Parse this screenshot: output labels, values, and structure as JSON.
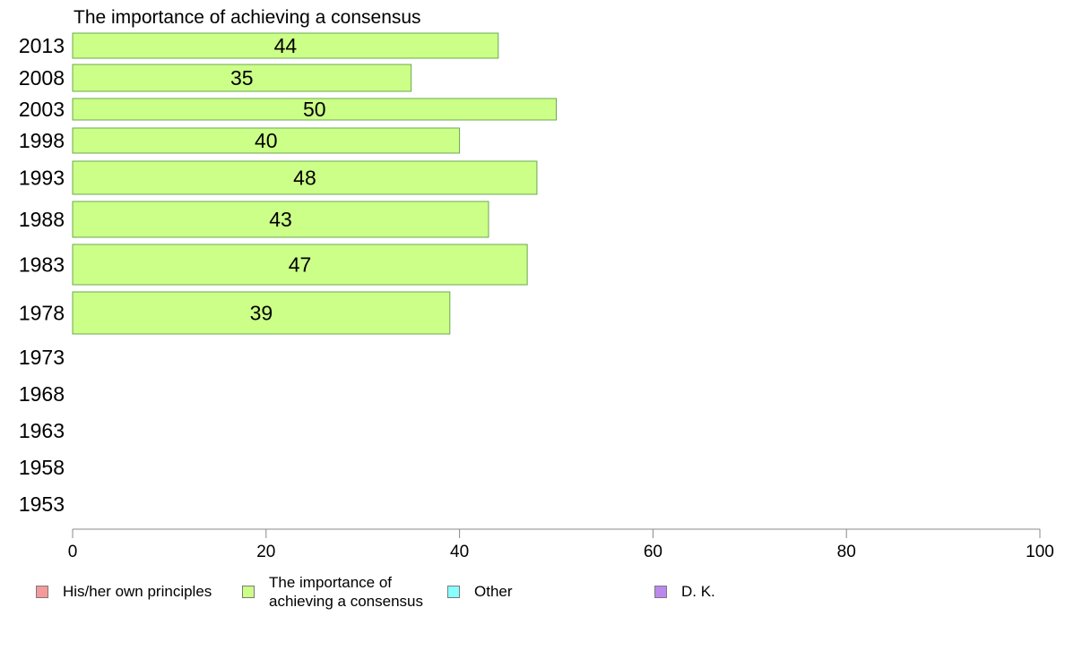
{
  "chart_data": {
    "type": "bar",
    "orientation": "horizontal",
    "title": "The importance of achieving a consensus",
    "categories": [
      "2013",
      "2008",
      "2003",
      "1998",
      "1993",
      "1988",
      "1983",
      "1978",
      "1973",
      "1968",
      "1963",
      "1958",
      "1953"
    ],
    "series": [
      {
        "name": "The importance of achieving a consensus",
        "values": [
          44,
          35,
          50,
          40,
          48,
          43,
          47,
          39,
          null,
          null,
          null,
          null,
          null
        ],
        "labels": [
          "44",
          "35",
          "50",
          "40",
          "48",
          "43",
          "47",
          "39",
          "",
          "",
          "",
          "",
          ""
        ]
      }
    ],
    "xlim": [
      0,
      100
    ],
    "xticks": [
      "0",
      "20",
      "40",
      "60",
      "80",
      "100"
    ],
    "grid": false,
    "legend_position": "bottom",
    "legend": [
      {
        "label": "His/her own principles",
        "color": "#f59a9a"
      },
      {
        "label": "The importance of\nachieving a consensus",
        "color": "#ccff88"
      },
      {
        "label": "Other",
        "color": "#88ffff"
      },
      {
        "label": "D. K.",
        "color": "#bb88ee"
      }
    ],
    "bar_color": "#ccff88",
    "bar_stroke": "#6aa84f"
  }
}
